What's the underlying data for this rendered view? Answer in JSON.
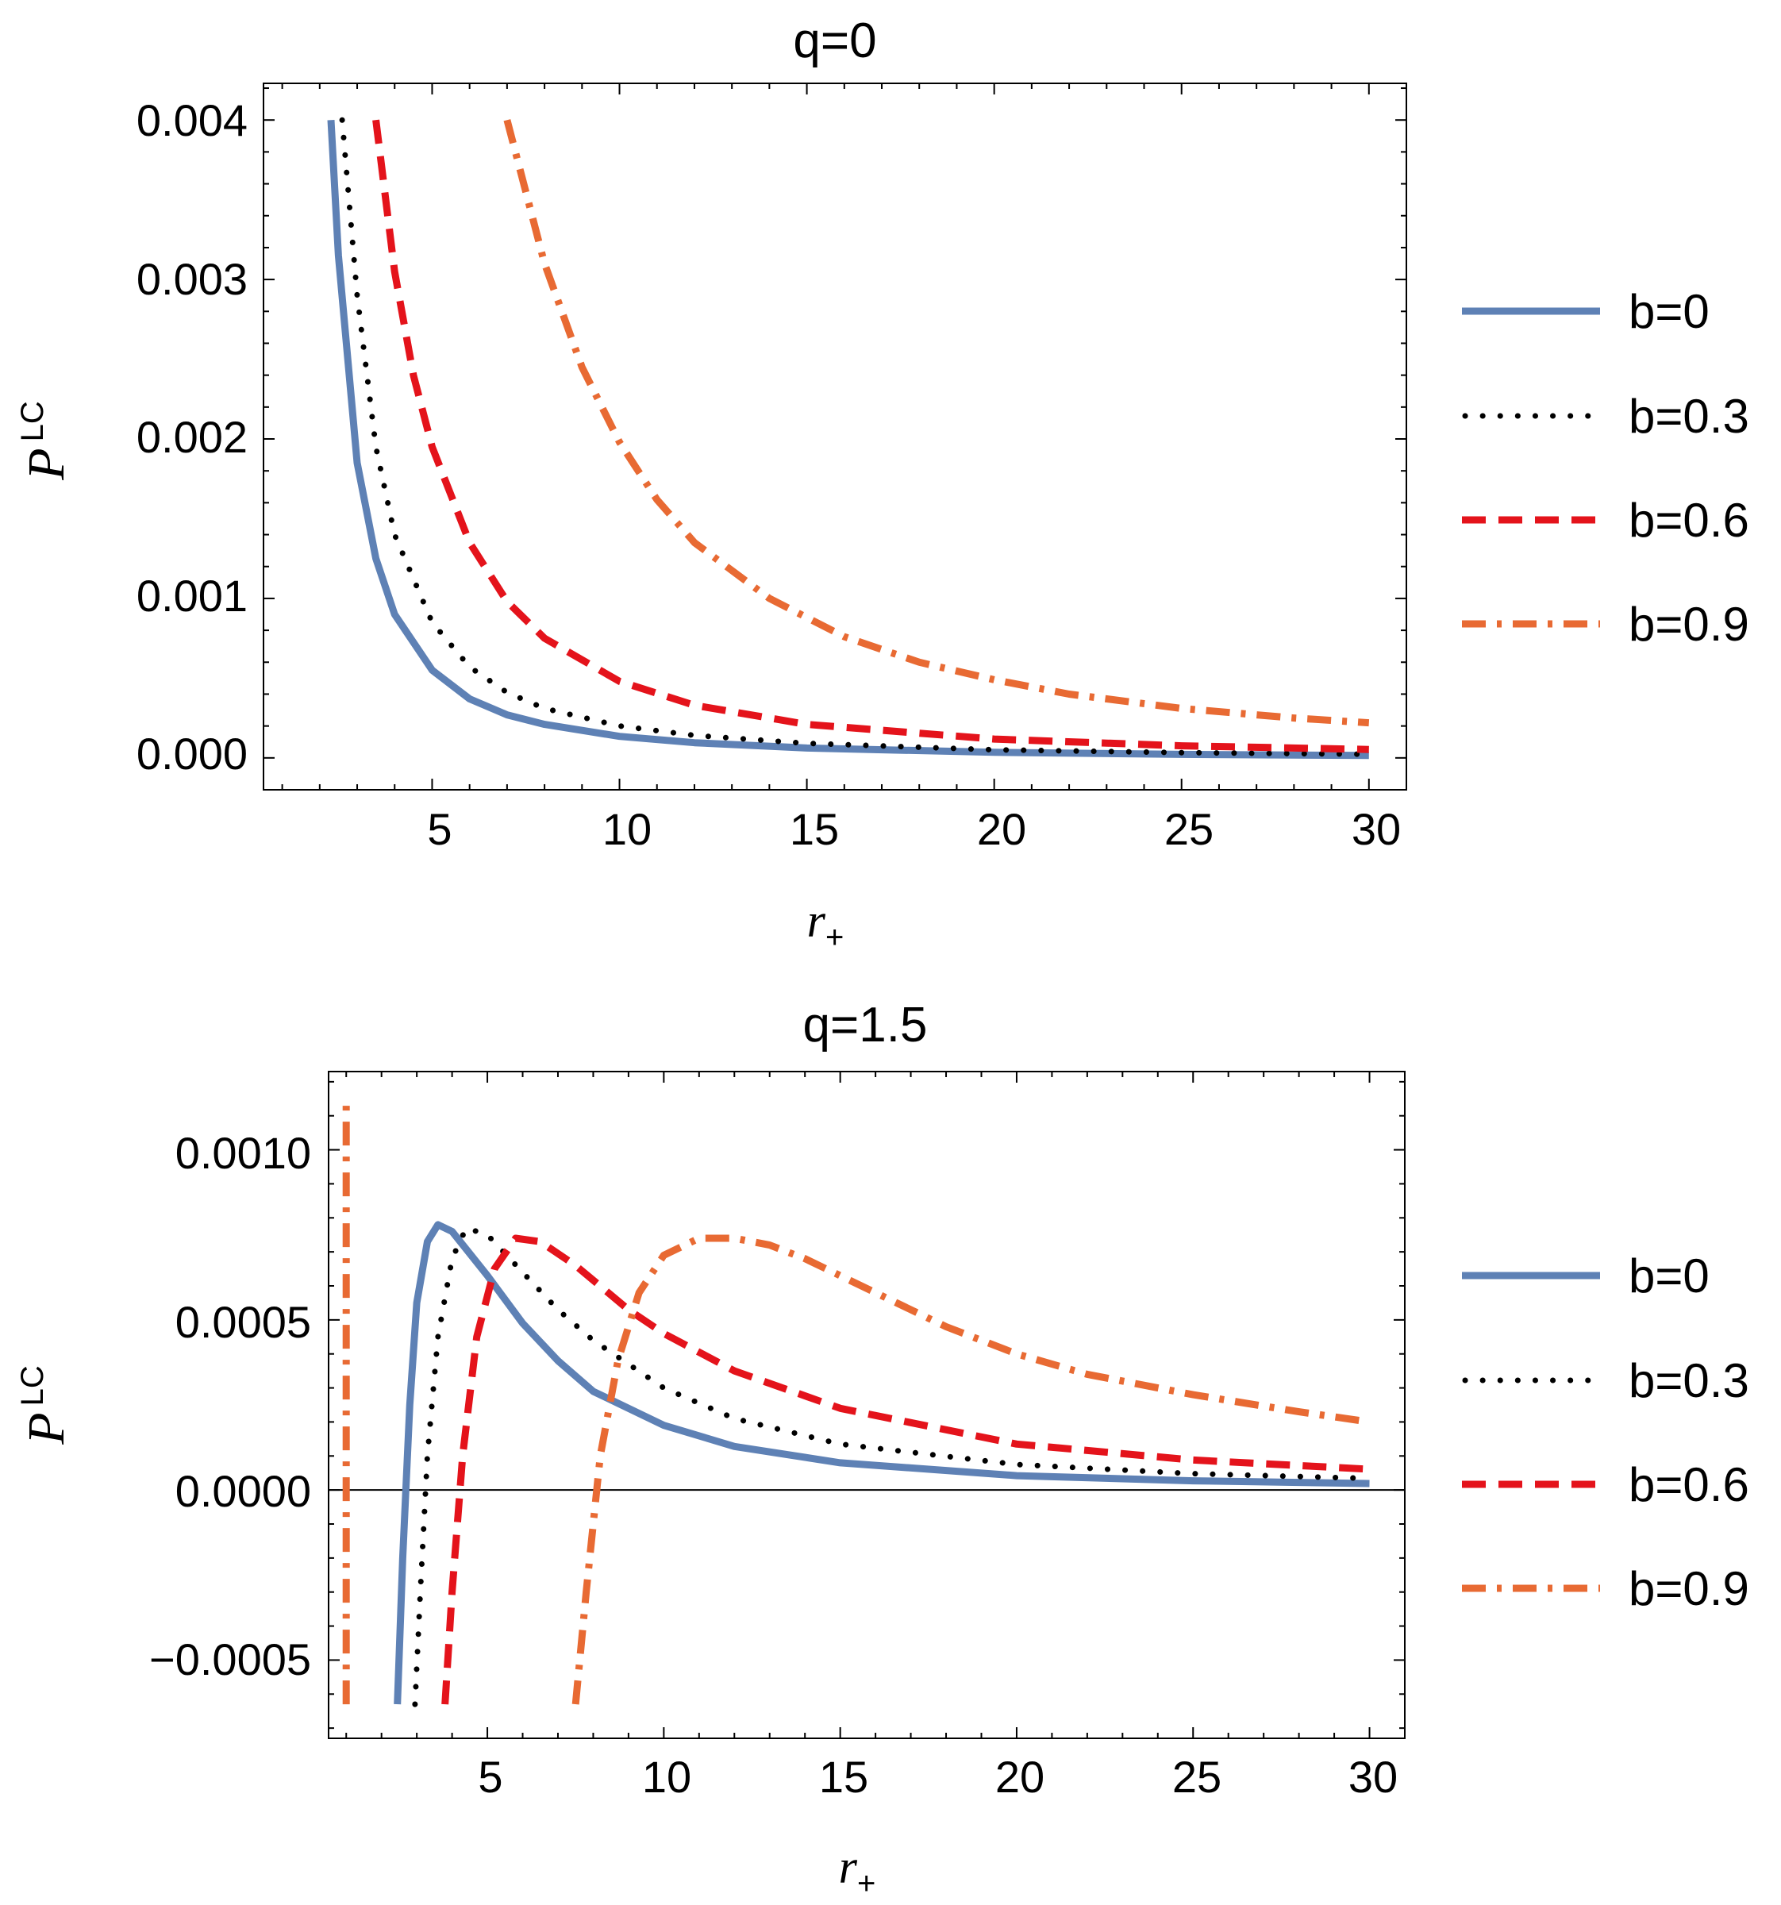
{
  "chart_data": [
    {
      "type": "line",
      "title": "q=0",
      "xlabel": {
        "main": "r",
        "sub": "+"
      },
      "ylabel": {
        "main": "P",
        "sup": "LC"
      },
      "xlim": [
        0.5,
        31
      ],
      "ylim": [
        -0.0002,
        0.00423
      ],
      "xticks": [
        5,
        10,
        15,
        20,
        25,
        30
      ],
      "xtick_labels": [
        "5",
        "10",
        "15",
        "20",
        "25",
        "30"
      ],
      "yticks": [
        0.0,
        0.001,
        0.002,
        0.003,
        0.004
      ],
      "ytick_labels": [
        "0.000",
        "0.001",
        "0.002",
        "0.003",
        "0.004"
      ],
      "legend_position": "right",
      "grid": false,
      "series": [
        {
          "name": "b=0",
          "color": "#5E81B5",
          "style": "solid",
          "x": [
            2.3,
            2.5,
            3,
            3.5,
            4,
            5,
            6,
            7,
            8,
            10,
            12,
            15,
            20,
            25,
            30
          ],
          "y": [
            0.004,
            0.00315,
            0.00185,
            0.00125,
            0.0009,
            0.00055,
            0.00037,
            0.00027,
            0.00021,
            0.000135,
            9.5e-05,
            6.2e-05,
            3.5e-05,
            2.2e-05,
            1.5e-05
          ]
        },
        {
          "name": "b=0.3",
          "color": "#000000",
          "style": "dotted",
          "x": [
            2.6,
            3,
            3.5,
            4,
            5,
            6,
            7,
            8,
            10,
            12,
            15,
            20,
            25,
            30
          ],
          "y": [
            0.004,
            0.0029,
            0.00195,
            0.0014,
            0.00085,
            0.00057,
            0.00041,
            0.00031,
            0.0002,
            0.000141,
            9.1e-05,
            5.1e-05,
            3.3e-05,
            2.3e-05
          ]
        },
        {
          "name": "b=0.6",
          "color": "#E4131B",
          "style": "dashed",
          "x": [
            3.5,
            4,
            4.5,
            5,
            6,
            7,
            8,
            10,
            12,
            15,
            20,
            25,
            30
          ],
          "y": [
            0.004,
            0.00305,
            0.0024,
            0.00195,
            0.00135,
            0.00098,
            0.00075,
            0.00048,
            0.00033,
            0.00021,
            0.000118,
            7.6e-05,
            5.3e-05
          ]
        },
        {
          "name": "b=0.9",
          "color": "#E86A33",
          "style": "dashdot",
          "x": [
            7,
            8,
            9,
            10,
            11,
            12,
            14,
            16,
            18,
            20,
            22,
            25,
            28,
            30
          ],
          "y": [
            0.004,
            0.0031,
            0.00245,
            0.00198,
            0.00162,
            0.00135,
            0.001,
            0.00076,
            0.0006,
            0.00049,
            0.0004,
            0.00031,
            0.00025,
            0.00022
          ]
        }
      ]
    },
    {
      "type": "line",
      "title": "q=1.5",
      "xlabel": {
        "main": "r",
        "sub": "+"
      },
      "ylabel": {
        "main": "P",
        "sup": "LC"
      },
      "xlim": [
        0.5,
        31
      ],
      "ylim": [
        -0.00073,
        0.00123
      ],
      "xticks": [
        5,
        10,
        15,
        20,
        25,
        30
      ],
      "xtick_labels": [
        "5",
        "10",
        "15",
        "20",
        "25",
        "30"
      ],
      "yticks": [
        -0.0005,
        0.0,
        0.0005,
        0.001
      ],
      "ytick_labels": [
        "−0.0005",
        "0.0000",
        "0.0005",
        "0.0010"
      ],
      "zero_line": true,
      "legend_position": "right",
      "grid": false,
      "series": [
        {
          "name": "b=0",
          "color": "#5E81B5",
          "style": "solid",
          "x": [
            2.45,
            2.6,
            2.8,
            3.0,
            3.3,
            3.6,
            4.0,
            5,
            6,
            7,
            8,
            10,
            12,
            15,
            20,
            25,
            30
          ],
          "y": [
            -0.00063,
            -0.0002,
            0.00025,
            0.00055,
            0.00073,
            0.00078,
            0.00076,
            0.00063,
            0.00049,
            0.00038,
            0.00029,
            0.00019,
            0.000128,
            8e-05,
            4.2e-05,
            2.7e-05,
            1.9e-05
          ]
        },
        {
          "name": "b=0.3",
          "color": "#000000",
          "style": "dotted",
          "x": [
            2.95,
            3.1,
            3.3,
            3.6,
            4.0,
            4.4,
            5,
            6,
            7,
            8,
            10,
            12,
            15,
            20,
            25,
            30
          ],
          "y": [
            -0.00063,
            -0.0003,
            0.0001,
            0.00045,
            0.00068,
            0.00077,
            0.00075,
            0.00064,
            0.00053,
            0.00044,
            0.0003,
            0.00021,
            0.000135,
            7.5e-05,
            4.8e-05,
            3.4e-05
          ]
        },
        {
          "name": "b=0.6",
          "color": "#E4131B",
          "style": "dashed",
          "x": [
            3.8,
            4.0,
            4.3,
            4.7,
            5.2,
            5.8,
            6.5,
            7.5,
            9,
            10,
            12,
            15,
            20,
            25,
            30
          ],
          "y": [
            -0.00063,
            -0.0003,
            0.0001,
            0.00045,
            0.00065,
            0.00074,
            0.00073,
            0.00066,
            0.00053,
            0.00046,
            0.00035,
            0.00024,
            0.000135,
            8.8e-05,
            6.1e-05
          ]
        },
        {
          "name": "b=0.9",
          "color": "#E86A33",
          "style": "dashdot",
          "x": [
            7.5,
            7.8,
            8.2,
            8.7,
            9.3,
            10,
            11,
            12,
            13,
            14,
            16,
            18,
            20,
            22,
            25,
            28,
            30
          ],
          "y": [
            -0.00063,
            -0.0003,
            0.0001,
            0.00038,
            0.00058,
            0.00069,
            0.00074,
            0.00074,
            0.00072,
            0.00068,
            0.00058,
            0.00048,
            0.0004,
            0.00034,
            0.00028,
            0.00023,
            0.0002
          ]
        },
        {
          "name": "",
          "color": "#E86A33",
          "style": "dashdot",
          "x": [
            1.0,
            1.0
          ],
          "y": [
            -0.00063,
            0.00115
          ]
        }
      ]
    }
  ]
}
